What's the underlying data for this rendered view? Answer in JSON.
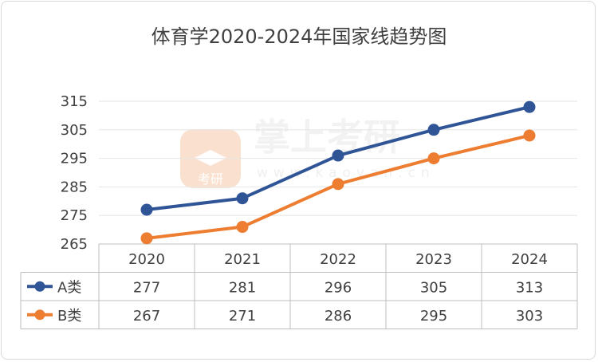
{
  "chart_data": {
    "type": "line",
    "title": "体育学2020-2024年国家线趋势图",
    "categories": [
      "2020",
      "2021",
      "2022",
      "2023",
      "2024"
    ],
    "series": [
      {
        "name": "A类",
        "values": [
          277,
          281,
          296,
          305,
          313
        ],
        "color": "#2f5597"
      },
      {
        "name": "B类",
        "values": [
          267,
          271,
          286,
          295,
          303
        ],
        "color": "#ed7d31"
      }
    ],
    "yticks": [
      265,
      275,
      285,
      295,
      305,
      315
    ],
    "ylim": [
      265,
      315
    ],
    "grid": true,
    "legend": "data-table",
    "watermark": {
      "text": "掌上考研",
      "url": "www.kaoyan.cn",
      "logo_label": "考研"
    }
  }
}
